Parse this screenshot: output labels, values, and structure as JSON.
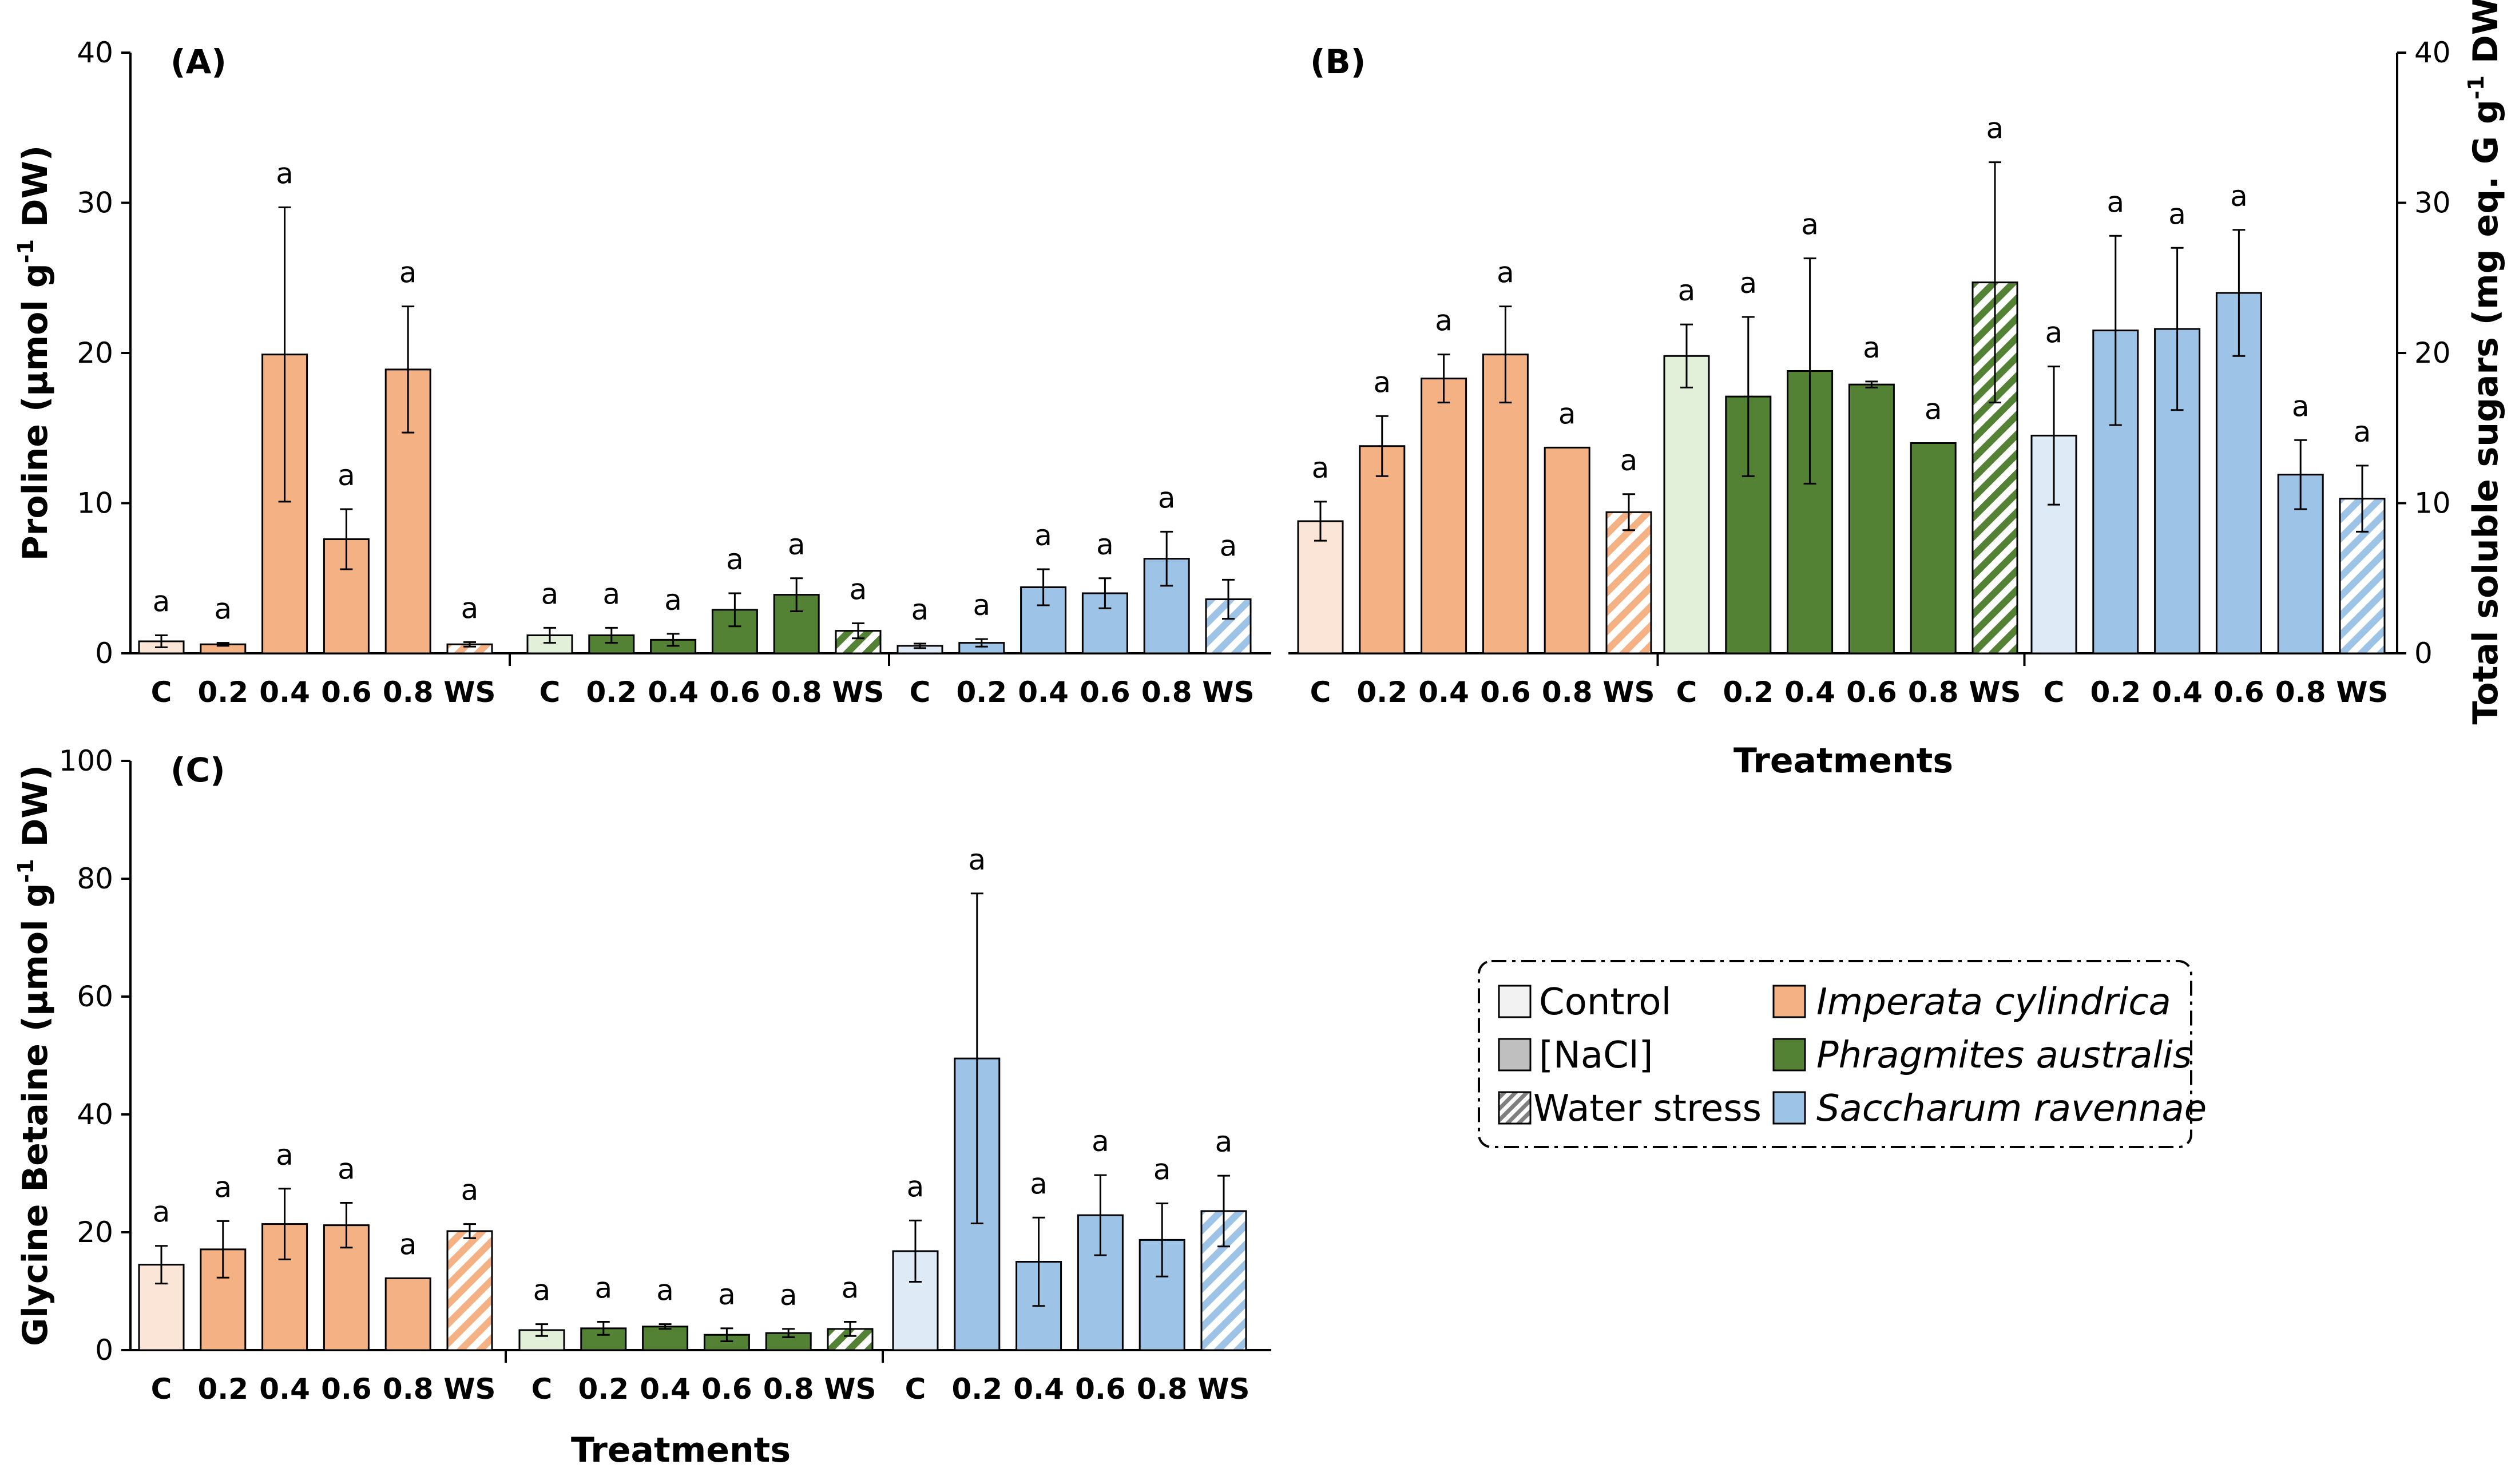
{
  "colors": {
    "imperata_control": "#fbe5d6",
    "imperata": "#f4b183",
    "phragmites_control": "#e2f0d9",
    "phragmites": "#548235",
    "saccharum_control": "#deebf7",
    "saccharum": "#9dc3e6",
    "nacl_legend": "#bfbfbf",
    "control_legend": "#f2f2f2"
  },
  "legend": {
    "control": "Control",
    "nacl": "[NaCl]",
    "water_stress": "Water stress",
    "imperata": "Imperata cylindrica",
    "phragmites": "Phragmites australis",
    "saccharum": "Saccharum ravennae"
  },
  "chart_data": [
    {
      "panel": "(A)",
      "type": "bar",
      "ylabel": "Proline (µmol g-1 DW)",
      "ylabel_main": "Proline (µmol g",
      "ylabel_sup": "-1",
      "ylabel_tail": " DW)",
      "xlabel": "",
      "ylim": [
        0,
        40
      ],
      "yticks": [
        "0",
        "10",
        "20",
        "30",
        "40"
      ],
      "categories": [
        "C",
        "0.2",
        "0.4",
        "0.6",
        "0.8",
        "WS"
      ],
      "series": [
        {
          "name": "Imperata cylindrica",
          "values": [
            0.8,
            0.6,
            19.9,
            7.6,
            18.9,
            0.6
          ],
          "errors": [
            0.4,
            0.1,
            9.8,
            2.0,
            4.2,
            0.15
          ],
          "letters": [
            "a",
            "a",
            "a",
            "a",
            "a",
            "a"
          ]
        },
        {
          "name": "Phragmites australis",
          "values": [
            1.2,
            1.2,
            0.9,
            2.9,
            3.9,
            1.5
          ],
          "errors": [
            0.5,
            0.5,
            0.4,
            1.1,
            1.1,
            0.5
          ],
          "letters": [
            "a",
            "a",
            "a",
            "a",
            "a",
            "a"
          ]
        },
        {
          "name": "Saccharum ravennae",
          "values": [
            0.5,
            0.7,
            4.4,
            4.0,
            6.3,
            3.6
          ],
          "errors": [
            0.15,
            0.25,
            1.2,
            1.0,
            1.8,
            1.3
          ],
          "letters": [
            "a",
            "a",
            "a",
            "a",
            "a",
            "a"
          ]
        }
      ]
    },
    {
      "panel": "(B)",
      "type": "bar",
      "ylabel": "Total soluble sugars (mg eq. G g-1 DW)",
      "ylabel_main": "Total soluble sugars (mg eq. G g",
      "ylabel_sup": "-1",
      "ylabel_tail": " DW)",
      "xlabel": "Treatments",
      "ylim": [
        0,
        40
      ],
      "yticks": [
        "0",
        "10",
        "20",
        "30",
        "40"
      ],
      "categories": [
        "C",
        "0.2",
        "0.4",
        "0.6",
        "0.8",
        "WS"
      ],
      "series": [
        {
          "name": "Imperata cylindrica",
          "values": [
            8.8,
            13.8,
            18.3,
            19.9,
            13.7,
            9.4
          ],
          "errors": [
            1.3,
            2.0,
            1.6,
            3.2,
            0.0,
            1.2
          ],
          "letters": [
            "a",
            "a",
            "a",
            "a",
            "a",
            "a"
          ]
        },
        {
          "name": "Phragmites australis",
          "values": [
            19.8,
            17.1,
            18.8,
            17.9,
            14.0,
            24.7
          ],
          "errors": [
            2.1,
            5.3,
            7.5,
            0.2,
            0.0,
            8.0
          ],
          "letters": [
            "a",
            "a",
            "a",
            "a",
            "a",
            "a"
          ]
        },
        {
          "name": "Saccharum ravennae",
          "values": [
            14.5,
            21.5,
            21.6,
            24.0,
            11.9,
            10.3
          ],
          "errors": [
            4.6,
            6.3,
            5.4,
            4.2,
            2.3,
            2.2
          ],
          "letters": [
            "a",
            "a",
            "a",
            "a",
            "a",
            "a"
          ]
        }
      ]
    },
    {
      "panel": "(C)",
      "type": "bar",
      "ylabel": "Glycine Betaine (µmol g-1 DW)",
      "ylabel_main": "Glycine  Betaine (µmol g",
      "ylabel_sup": "-1",
      "ylabel_tail": " DW)",
      "xlabel": "Treatments",
      "ylim": [
        0,
        100
      ],
      "yticks": [
        "0",
        "20",
        "40",
        "60",
        "80",
        "100"
      ],
      "categories": [
        "C",
        "0.2",
        "0.4",
        "0.6",
        "0.8",
        "WS"
      ],
      "series": [
        {
          "name": "Imperata cylindrica",
          "values": [
            14.5,
            17.1,
            21.4,
            21.2,
            12.2,
            20.2
          ],
          "errors": [
            3.2,
            4.8,
            6.0,
            3.8,
            0.0,
            1.2
          ],
          "letters": [
            "a",
            "a",
            "a",
            "a",
            "a",
            "a"
          ]
        },
        {
          "name": "Phragmites australis",
          "values": [
            3.4,
            3.7,
            4.0,
            2.6,
            2.9,
            3.6
          ],
          "errors": [
            1.0,
            1.1,
            0.4,
            1.1,
            0.7,
            1.2
          ],
          "letters": [
            "a",
            "a",
            "a",
            "a",
            "a",
            "a"
          ]
        },
        {
          "name": "Saccharum ravennae",
          "values": [
            16.8,
            49.5,
            15.0,
            22.9,
            18.7,
            23.6
          ],
          "errors": [
            5.2,
            28.0,
            7.5,
            6.8,
            6.2,
            6.0
          ],
          "letters": [
            "a",
            "a",
            "a",
            "a",
            "a",
            "a"
          ]
        }
      ]
    }
  ]
}
